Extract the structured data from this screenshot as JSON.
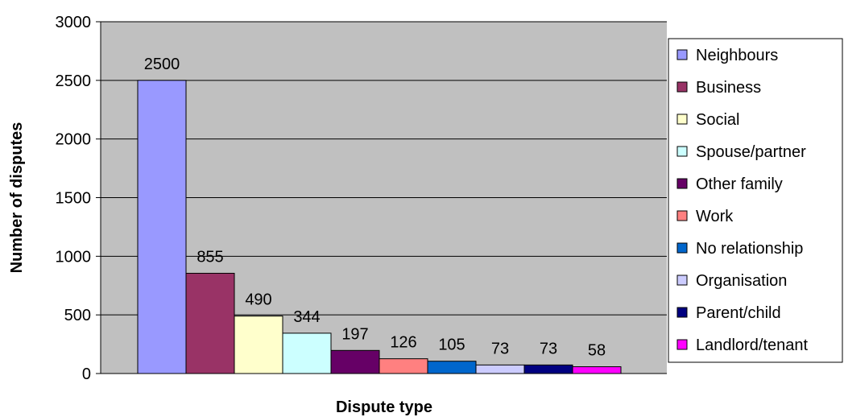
{
  "chart_data": {
    "type": "bar",
    "xlabel": "Dispute type",
    "ylabel": "Number of disputes",
    "ylim": [
      0,
      3000
    ],
    "yticks": [
      0,
      500,
      1000,
      1500,
      2000,
      2500,
      3000
    ],
    "grid": true,
    "legend_position": "right",
    "series": [
      {
        "name": "Neighbours",
        "value": 2500,
        "color": "#9999ff"
      },
      {
        "name": "Business",
        "value": 855,
        "color": "#993366"
      },
      {
        "name": "Social",
        "value": 490,
        "color": "#ffffcc"
      },
      {
        "name": "Spouse/partner",
        "value": 344,
        "color": "#ccffff"
      },
      {
        "name": "Other family",
        "value": 197,
        "color": "#660066"
      },
      {
        "name": "Work",
        "value": 126,
        "color": "#ff8080"
      },
      {
        "name": "No relationship",
        "value": 105,
        "color": "#0066cc"
      },
      {
        "name": "Organisation",
        "value": 73,
        "color": "#ccccff"
      },
      {
        "name": "Parent/child",
        "value": 73,
        "color": "#000080"
      },
      {
        "name": "Landlord/tenant",
        "value": 58,
        "color": "#ff00ff"
      }
    ]
  }
}
